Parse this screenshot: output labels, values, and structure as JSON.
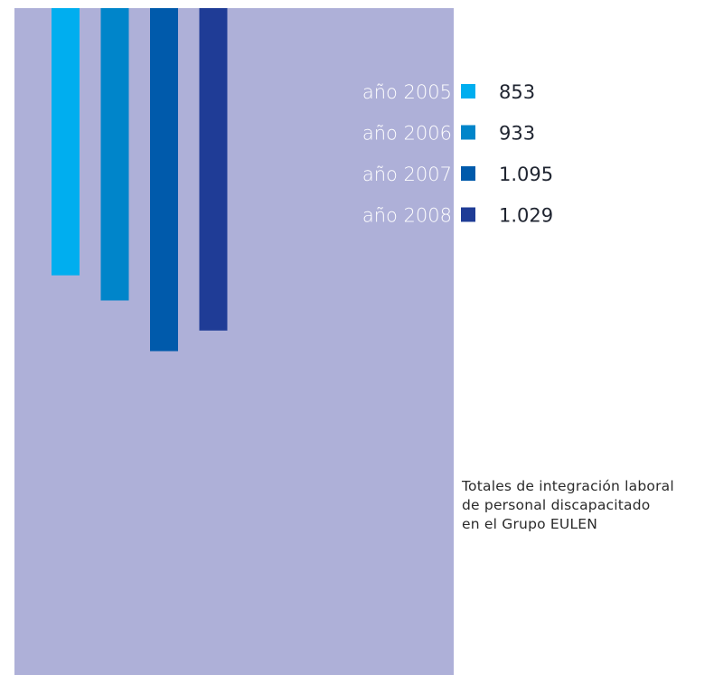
{
  "chart_data": {
    "type": "bar",
    "orientation": "vertical-hanging",
    "categories": [
      "año 2005",
      "año 2006",
      "año 2007",
      "año 2008"
    ],
    "values": [
      853,
      933,
      1095,
      1029
    ],
    "value_labels": [
      "853",
      "933",
      "1.095",
      "1.029"
    ],
    "colors": [
      "#00aeef",
      "#0085ca",
      "#005aab",
      "#1f3c96"
    ],
    "title_lines": [
      "Totales de integración laboral",
      "de personal discapacitado",
      "en el Grupo EULEN"
    ],
    "legend_position": "top-right",
    "grid": false,
    "xlabel": "",
    "ylabel": ""
  },
  "colors": {
    "panel_background": "#aeb0d8",
    "page_background": "#ffffff"
  }
}
